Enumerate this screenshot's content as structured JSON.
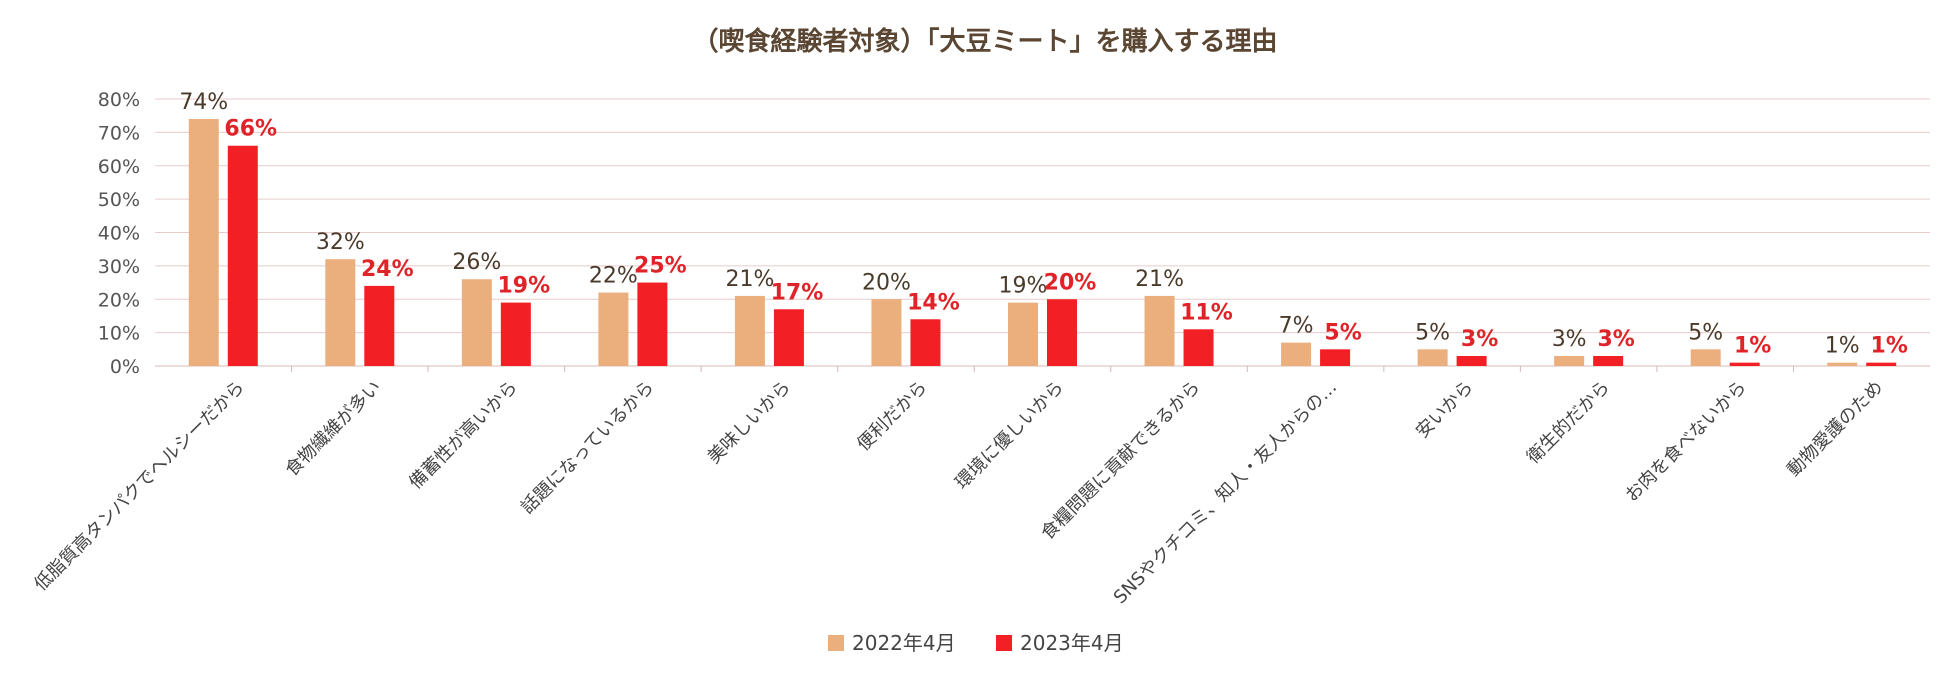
{
  "chart_data": {
    "type": "bar",
    "title": "（喫食経験者対象）「大豆ミート」を購入する理由",
    "categories": [
      "低脂質高タンパクでヘルシーだから",
      "食物繊維が多い",
      "備蓄性が高いから",
      "話題になっているから",
      "美味しいから",
      "便利だから",
      "環境に優しいから",
      "食糧問題に貢献できるから",
      "SNSやクチコミ、知人・友人からの…",
      "安いから",
      "衛生的だから",
      "お肉を食べないから",
      "動物愛護のため"
    ],
    "series": [
      {
        "name": "2022年4月",
        "color": "#ebaf7d",
        "values": [
          74,
          32,
          26,
          22,
          21,
          20,
          19,
          21,
          7,
          5,
          3,
          5,
          1
        ],
        "labels": [
          "74%",
          "32%",
          "26%",
          "22%",
          "21%",
          "20%",
          "19%",
          "21%",
          "7%",
          "5%",
          "3%",
          "5%",
          "1%"
        ]
      },
      {
        "name": "2023年4月",
        "color": "#f21f24",
        "values": [
          66,
          24,
          19,
          25,
          17,
          14,
          20,
          11,
          5,
          3,
          3,
          1,
          1
        ],
        "labels": [
          "66%",
          "24%",
          "19%",
          "25%",
          "17%",
          "14%",
          "20%",
          "11%",
          "5%",
          "3%",
          "3%",
          "1%",
          "1%"
        ]
      }
    ],
    "ylim": [
      0,
      80
    ],
    "yticks": [
      "0%",
      "10%",
      "20%",
      "30%",
      "40%",
      "50%",
      "60%",
      "70%",
      "80%"
    ],
    "grid": true,
    "legend_position": "bottom"
  }
}
